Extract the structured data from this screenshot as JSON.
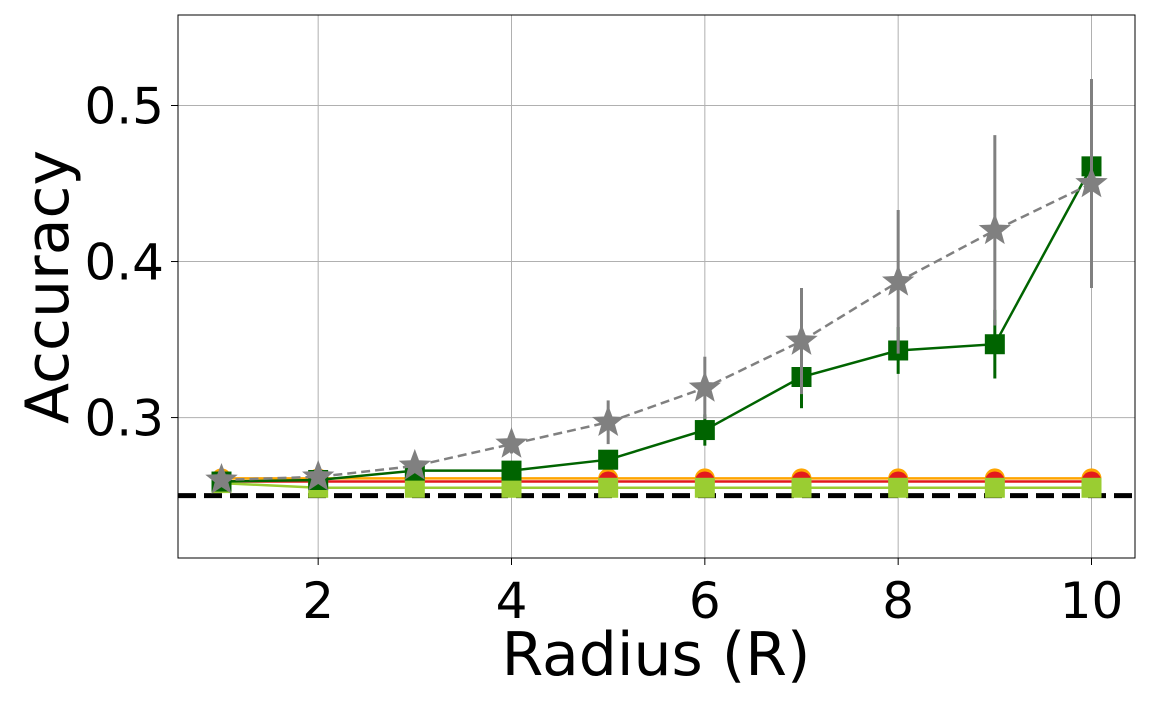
{
  "chart_data": {
    "type": "line",
    "xlabel": "Radius (R)",
    "ylabel": "Accuracy",
    "x": [
      1,
      2,
      3,
      4,
      5,
      6,
      7,
      8,
      9,
      10
    ],
    "xlim": [
      0.55,
      10.45
    ],
    "xticks": [
      2,
      4,
      6,
      8,
      10
    ],
    "ylim": [
      0.21,
      0.558
    ],
    "yticks": [
      0.3,
      0.4,
      0.5
    ],
    "grid": true,
    "hline": {
      "value": 0.25,
      "color": "#000000"
    },
    "series": [
      {
        "color": "#ffa500",
        "marker": "circle",
        "dashed": false,
        "values": [
          0.261,
          0.261,
          0.261,
          0.261,
          0.261,
          0.261,
          0.261,
          0.261,
          0.261,
          0.261
        ]
      },
      {
        "color": "#e31a1c",
        "marker": "circle",
        "dashed": false,
        "values": [
          0.259,
          0.259,
          0.259,
          0.259,
          0.259,
          0.259,
          0.259,
          0.259,
          0.259,
          0.259
        ]
      },
      {
        "color": "#9acd32",
        "marker": "square",
        "dashed": false,
        "values": [
          0.258,
          0.255,
          0.255,
          0.255,
          0.255,
          0.255,
          0.255,
          0.255,
          0.255,
          0.255
        ]
      },
      {
        "color": "#006400",
        "marker": "square",
        "dashed": false,
        "values": [
          0.259,
          0.26,
          0.266,
          0.266,
          0.273,
          0.292,
          0.326,
          0.343,
          0.347,
          0.461
        ],
        "errors": [
          0.002,
          0.002,
          0.003,
          0.004,
          0.006,
          0.01,
          0.02,
          0.015,
          0.022,
          0.03
        ]
      },
      {
        "color": "#808080",
        "marker": "star",
        "dashed": true,
        "values": [
          0.26,
          0.262,
          0.269,
          0.283,
          0.297,
          0.319,
          0.349,
          0.387,
          0.42,
          0.45
        ],
        "errors": [
          0.003,
          0.003,
          0.004,
          0.006,
          0.014,
          0.02,
          0.034,
          0.046,
          0.061,
          0.067
        ]
      }
    ]
  }
}
